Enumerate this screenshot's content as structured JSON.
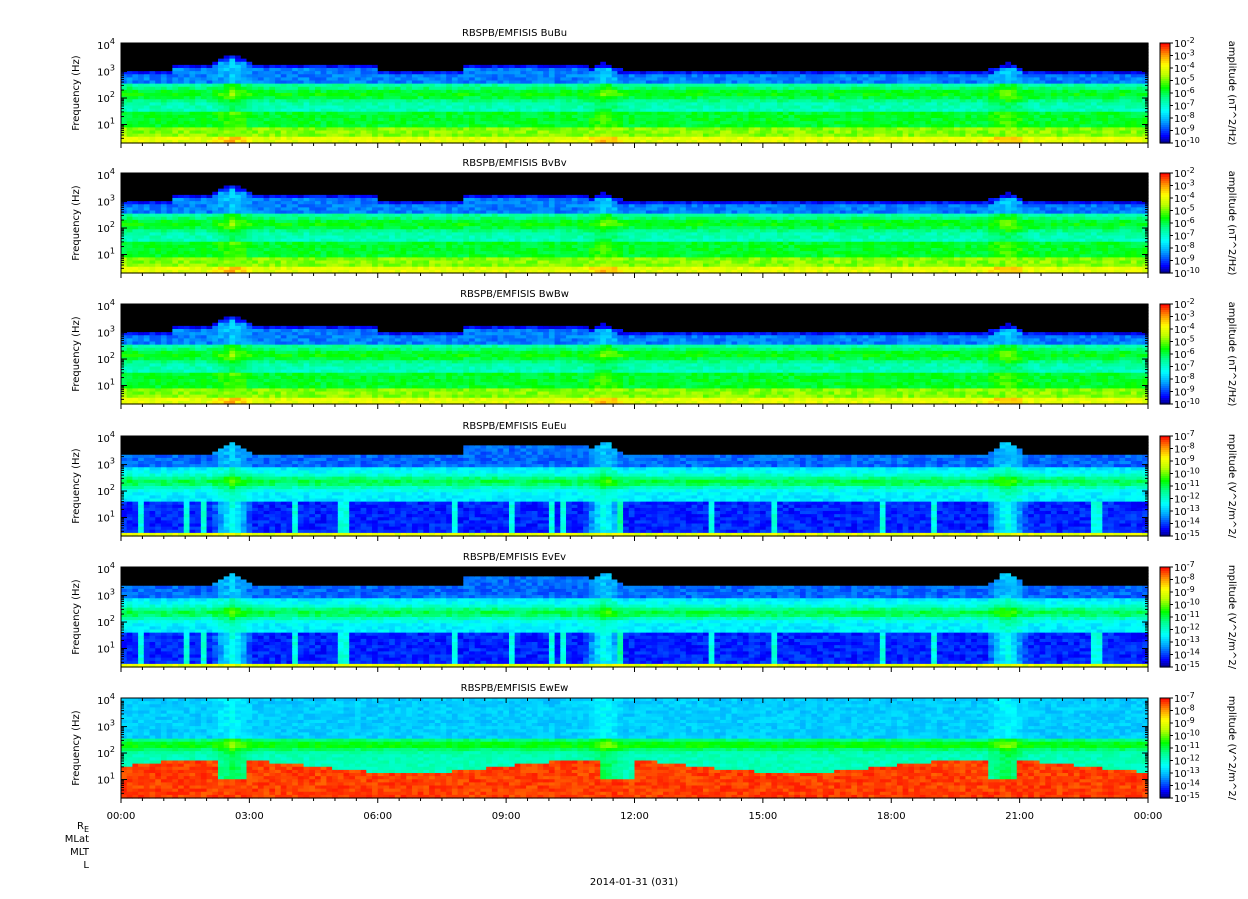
{
  "figure": {
    "date_label": "2014-01-31 (031)",
    "ephemeris_labels": [
      "R_E",
      "MLat",
      "MLT",
      "L"
    ],
    "x_tick_labels": [
      "00:00",
      "03:00",
      "06:00",
      "09:00",
      "12:00",
      "15:00",
      "18:00",
      "21:00",
      "00:00"
    ]
  },
  "colors": {
    "scale": [
      "#2000a0",
      "#0000ff",
      "#00b4ff",
      "#00ffff",
      "#00ff7f",
      "#00ff00",
      "#b4ff00",
      "#ffff00",
      "#ff9900",
      "#ff0000"
    ],
    "background_missing": "#000000"
  },
  "chart_data": [
    {
      "type": "heatmap",
      "title": "RBSPB/EMFISIS  BuBu",
      "ylabel": "Frequency (Hz)",
      "y_scale": "log",
      "ylim_hz": [
        2,
        12000
      ],
      "y_ticks": [
        {
          "base": "10",
          "exp": "1",
          "value": 10
        },
        {
          "base": "10",
          "exp": "2",
          "value": 100
        },
        {
          "base": "10",
          "exp": "3",
          "value": 1000
        },
        {
          "base": "10",
          "exp": "4",
          "value": 10000
        }
      ],
      "x_range_hours": [
        0,
        24
      ],
      "colorbar": {
        "label": "amplitude (nT^2/Hz)",
        "exponents": [
          "-2",
          "-3",
          "-4",
          "-5",
          "-6",
          "-7",
          "-8",
          "-9",
          "-10"
        ],
        "range_log10": [
          -10,
          -2
        ]
      }
    },
    {
      "type": "heatmap",
      "title": "RBSPB/EMFISIS  BvBv",
      "ylabel": "Frequency (Hz)",
      "y_scale": "log",
      "ylim_hz": [
        2,
        12000
      ],
      "y_ticks": [
        {
          "base": "10",
          "exp": "1",
          "value": 10
        },
        {
          "base": "10",
          "exp": "2",
          "value": 100
        },
        {
          "base": "10",
          "exp": "3",
          "value": 1000
        },
        {
          "base": "10",
          "exp": "4",
          "value": 10000
        }
      ],
      "x_range_hours": [
        0,
        24
      ],
      "colorbar": {
        "label": "amplitude (nT^2/Hz)",
        "exponents": [
          "-2",
          "-3",
          "-4",
          "-5",
          "-6",
          "-7",
          "-8",
          "-9",
          "-10"
        ],
        "range_log10": [
          -10,
          -2
        ]
      }
    },
    {
      "type": "heatmap",
      "title": "RBSPB/EMFISIS  BwBw",
      "ylabel": "Frequency (Hz)",
      "y_scale": "log",
      "ylim_hz": [
        2,
        12000
      ],
      "y_ticks": [
        {
          "base": "10",
          "exp": "1",
          "value": 10
        },
        {
          "base": "10",
          "exp": "2",
          "value": 100
        },
        {
          "base": "10",
          "exp": "3",
          "value": 1000
        },
        {
          "base": "10",
          "exp": "4",
          "value": 10000
        }
      ],
      "x_range_hours": [
        0,
        24
      ],
      "colorbar": {
        "label": "amplitude (nT^2/Hz)",
        "exponents": [
          "-2",
          "-3",
          "-4",
          "-5",
          "-6",
          "-7",
          "-8",
          "-9",
          "-10"
        ],
        "range_log10": [
          -10,
          -2
        ]
      }
    },
    {
      "type": "heatmap",
      "title": "RBSPB/EMFISIS  EuEu",
      "ylabel": "Frequency (Hz)",
      "y_scale": "log",
      "ylim_hz": [
        2,
        12000
      ],
      "y_ticks": [
        {
          "base": "10",
          "exp": "1",
          "value": 10
        },
        {
          "base": "10",
          "exp": "2",
          "value": 100
        },
        {
          "base": "10",
          "exp": "3",
          "value": 1000
        },
        {
          "base": "10",
          "exp": "4",
          "value": 10000
        }
      ],
      "x_range_hours": [
        0,
        24
      ],
      "colorbar": {
        "label": "mplitude (V^2/m^2/",
        "exponents": [
          "-7",
          "-8",
          "-9",
          "-10",
          "-11",
          "-12",
          "-13",
          "-14",
          "-15"
        ],
        "range_log10": [
          -15,
          -7
        ]
      }
    },
    {
      "type": "heatmap",
      "title": "RBSPB/EMFISIS  EvEv",
      "ylabel": "Frequency (Hz)",
      "y_scale": "log",
      "ylim_hz": [
        2,
        12000
      ],
      "y_ticks": [
        {
          "base": "10",
          "exp": "1",
          "value": 10
        },
        {
          "base": "10",
          "exp": "2",
          "value": 100
        },
        {
          "base": "10",
          "exp": "3",
          "value": 1000
        },
        {
          "base": "10",
          "exp": "4",
          "value": 10000
        }
      ],
      "x_range_hours": [
        0,
        24
      ],
      "colorbar": {
        "label": "mplitude (V^2/m^2/",
        "exponents": [
          "-7",
          "-8",
          "-9",
          "-10",
          "-11",
          "-12",
          "-13",
          "-14",
          "-15"
        ],
        "range_log10": [
          -15,
          -7
        ]
      }
    },
    {
      "type": "heatmap",
      "title": "RBSPB/EMFISIS  EwEw",
      "ylabel": "Frequency (Hz)",
      "y_scale": "log",
      "ylim_hz": [
        2,
        12000
      ],
      "y_ticks": [
        {
          "base": "10",
          "exp": "1",
          "value": 10
        },
        {
          "base": "10",
          "exp": "2",
          "value": 100
        },
        {
          "base": "10",
          "exp": "3",
          "value": 1000
        },
        {
          "base": "10",
          "exp": "4",
          "value": 10000
        }
      ],
      "x_range_hours": [
        0,
        24
      ],
      "colorbar": {
        "label": "mplitude (V^2/m^2/",
        "exponents": [
          "-7",
          "-8",
          "-9",
          "-10",
          "-11",
          "-12",
          "-13",
          "-14",
          "-15"
        ],
        "range_log10": [
          -15,
          -7
        ]
      }
    }
  ]
}
